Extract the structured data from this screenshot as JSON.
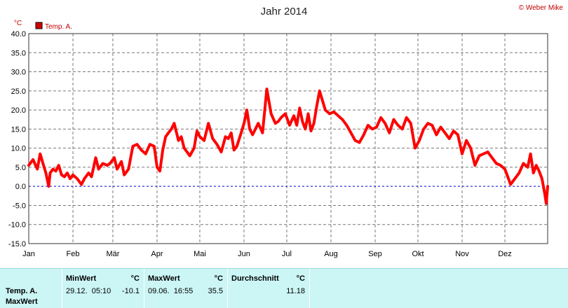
{
  "copyright": "© Weber Mike",
  "chart_data": {
    "type": "line",
    "title": "Jahr 2014",
    "y_unit": "°C",
    "ylim": [
      -15,
      40
    ],
    "y_ticks": [
      "40.0",
      "35.0",
      "30.0",
      "25.0",
      "20.0",
      "15.0",
      "10.0",
      "5.0",
      "0.0",
      "-5.0",
      "-10.0",
      "-15.0"
    ],
    "x_ticks": [
      "Jan",
      "Feb",
      "Mär",
      "Apr",
      "Mai",
      "Jun",
      "Jul",
      "Aug",
      "Sep",
      "Okt",
      "Nov",
      "Dez"
    ],
    "grid": true,
    "legend_position": "top-left",
    "zero_line": true,
    "series": [
      {
        "name": "Temp. A.",
        "color": "#ff0000",
        "x_day_of_year": [
          1,
          4,
          7,
          9,
          11,
          13,
          15,
          16,
          18,
          20,
          22,
          24,
          26,
          28,
          30,
          32,
          35,
          38,
          40,
          43,
          45,
          48,
          50,
          53,
          56,
          58,
          61,
          63,
          66,
          68,
          71,
          74,
          77,
          80,
          83,
          86,
          89,
          91,
          93,
          95,
          97,
          99,
          101,
          103,
          106,
          108,
          110,
          112,
          114,
          117,
          119,
          121,
          124,
          127,
          130,
          133,
          136,
          139,
          141,
          143,
          145,
          147,
          150,
          152,
          154,
          156,
          158,
          160,
          162,
          165,
          168,
          171,
          174,
          176,
          178,
          181,
          184,
          187,
          189,
          191,
          193,
          195,
          197,
          199,
          201,
          203,
          205,
          207,
          209,
          212,
          215,
          218,
          221,
          224,
          227,
          230,
          233,
          236,
          239,
          242,
          245,
          248,
          251,
          254,
          257,
          260,
          263,
          266,
          269,
          272,
          275,
          278,
          281,
          284,
          287,
          290,
          293,
          296,
          299,
          302,
          305,
          308,
          311,
          314,
          317,
          320,
          323,
          326,
          329,
          332,
          335,
          337,
          339,
          342,
          345,
          348,
          351,
          353,
          355,
          357,
          359,
          361,
          363,
          364,
          365
        ],
        "y": [
          5.5,
          7.0,
          4.5,
          8.5,
          6.0,
          3.5,
          0.0,
          3.5,
          4.5,
          4.0,
          5.5,
          3.0,
          2.5,
          3.5,
          2.0,
          3.0,
          2.0,
          0.5,
          2.0,
          3.5,
          2.5,
          7.5,
          4.5,
          6.0,
          5.5,
          6.0,
          7.5,
          4.5,
          6.5,
          3.0,
          4.5,
          10.5,
          11.0,
          9.5,
          8.5,
          11.0,
          10.5,
          5.0,
          4.0,
          9.5,
          13.0,
          14.0,
          15.0,
          16.5,
          12.0,
          13.0,
          10.0,
          9.0,
          8.0,
          10.0,
          14.5,
          13.0,
          12.0,
          16.5,
          12.5,
          11.0,
          9.0,
          13.0,
          12.5,
          14.0,
          9.5,
          10.5,
          14.0,
          16.5,
          20.0,
          15.0,
          13.5,
          15.0,
          16.5,
          14.0,
          25.5,
          19.0,
          16.5,
          17.0,
          18.0,
          19.0,
          16.0,
          18.5,
          16.0,
          20.5,
          17.0,
          15.0,
          19.0,
          14.5,
          16.5,
          21.0,
          25.0,
          22.5,
          20.0,
          19.0,
          19.5,
          18.5,
          17.5,
          16.0,
          14.0,
          12.0,
          11.5,
          13.5,
          16.0,
          15.0,
          15.5,
          18.0,
          16.5,
          14.0,
          17.5,
          16.0,
          15.0,
          18.0,
          16.5,
          10.0,
          12.0,
          15.0,
          16.5,
          16.0,
          13.5,
          15.5,
          14.0,
          12.5,
          14.5,
          13.5,
          8.5,
          12.0,
          10.0,
          5.5,
          8.0,
          8.5,
          9.0,
          7.5,
          6.0,
          5.5,
          4.5,
          2.5,
          0.5,
          2.0,
          3.5,
          6.0,
          5.0,
          8.5,
          3.5,
          5.5,
          4.0,
          2.0,
          -2.0,
          -4.5,
          0.0
        ]
      }
    ]
  },
  "stats": {
    "row_label_1": "Temp. A.",
    "row_label_2": "MaxWert",
    "min": {
      "header": "MinWert",
      "unit": "°C",
      "datetime": "29.12.  05:10",
      "value": "-10.1"
    },
    "max": {
      "header": "MaxWert",
      "unit": "°C",
      "datetime": "09.06.  16:55",
      "value": "35.5"
    },
    "avg": {
      "header": "Durchschnitt",
      "unit": "°C",
      "value": "11.18"
    }
  }
}
